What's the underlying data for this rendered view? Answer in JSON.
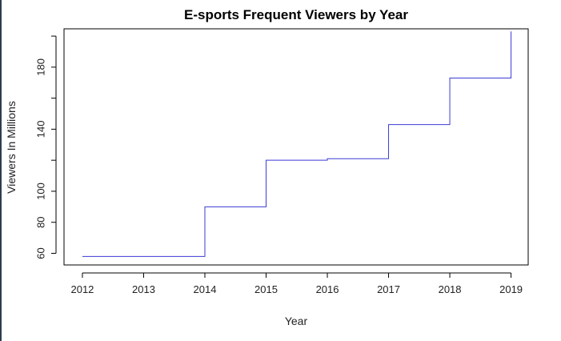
{
  "chart_data": {
    "type": "line",
    "step": true,
    "title": "E-sports Frequent Viewers by Year",
    "xlabel": "Year",
    "ylabel": "Viewers In Millions",
    "x_ticks": [
      2012,
      2013,
      2014,
      2015,
      2016,
      2017,
      2018,
      2019
    ],
    "y_ticks": [
      60,
      80,
      100,
      140,
      180
    ],
    "xlim": [
      2011.7,
      2019.28
    ],
    "ylim": [
      52.5,
      204.7
    ],
    "grid": false,
    "line_color": "#3b3bd6",
    "series": [
      {
        "x": [
          2012,
          2013,
          2014,
          2015,
          2016,
          2017,
          2018,
          2019
        ],
        "values": [
          58,
          58,
          90,
          120,
          121,
          143,
          173,
          203
        ]
      }
    ]
  }
}
